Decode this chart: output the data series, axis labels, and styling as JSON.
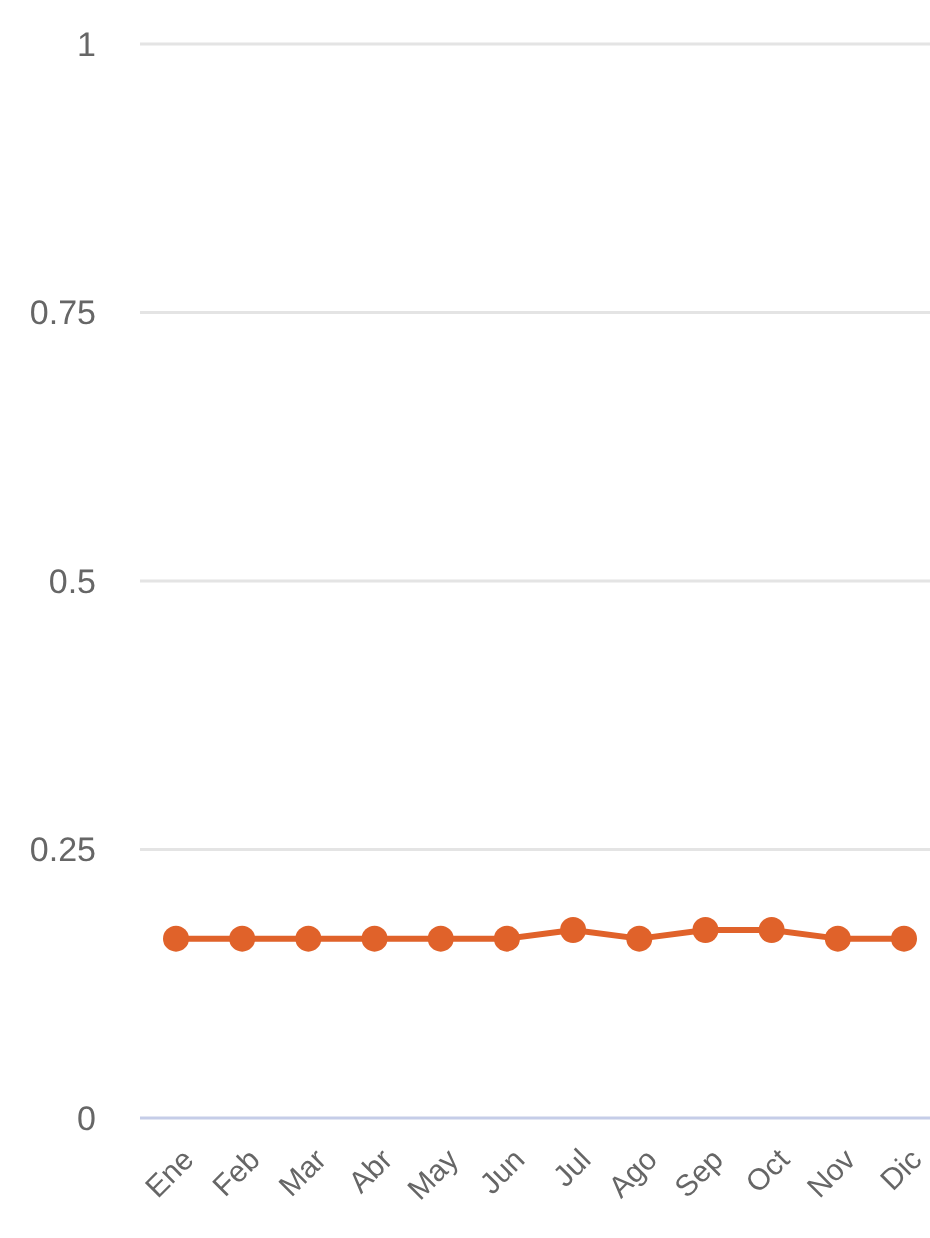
{
  "chart_data": {
    "type": "line",
    "categories": [
      "Ene",
      "Feb",
      "Mar",
      "Abr",
      "May",
      "Jun",
      "Jul",
      "Ago",
      "Sep",
      "Oct",
      "Nov",
      "Dic"
    ],
    "series": [
      {
        "color": "#e0622a",
        "values": [
          0.167,
          0.167,
          0.167,
          0.167,
          0.167,
          0.167,
          0.175,
          0.167,
          0.175,
          0.175,
          0.167,
          0.167
        ]
      }
    ],
    "ylim": [
      0,
      1
    ],
    "yticks": [
      0,
      0.25,
      0.5,
      0.75,
      1
    ],
    "grid": "y",
    "marker": "circle"
  }
}
